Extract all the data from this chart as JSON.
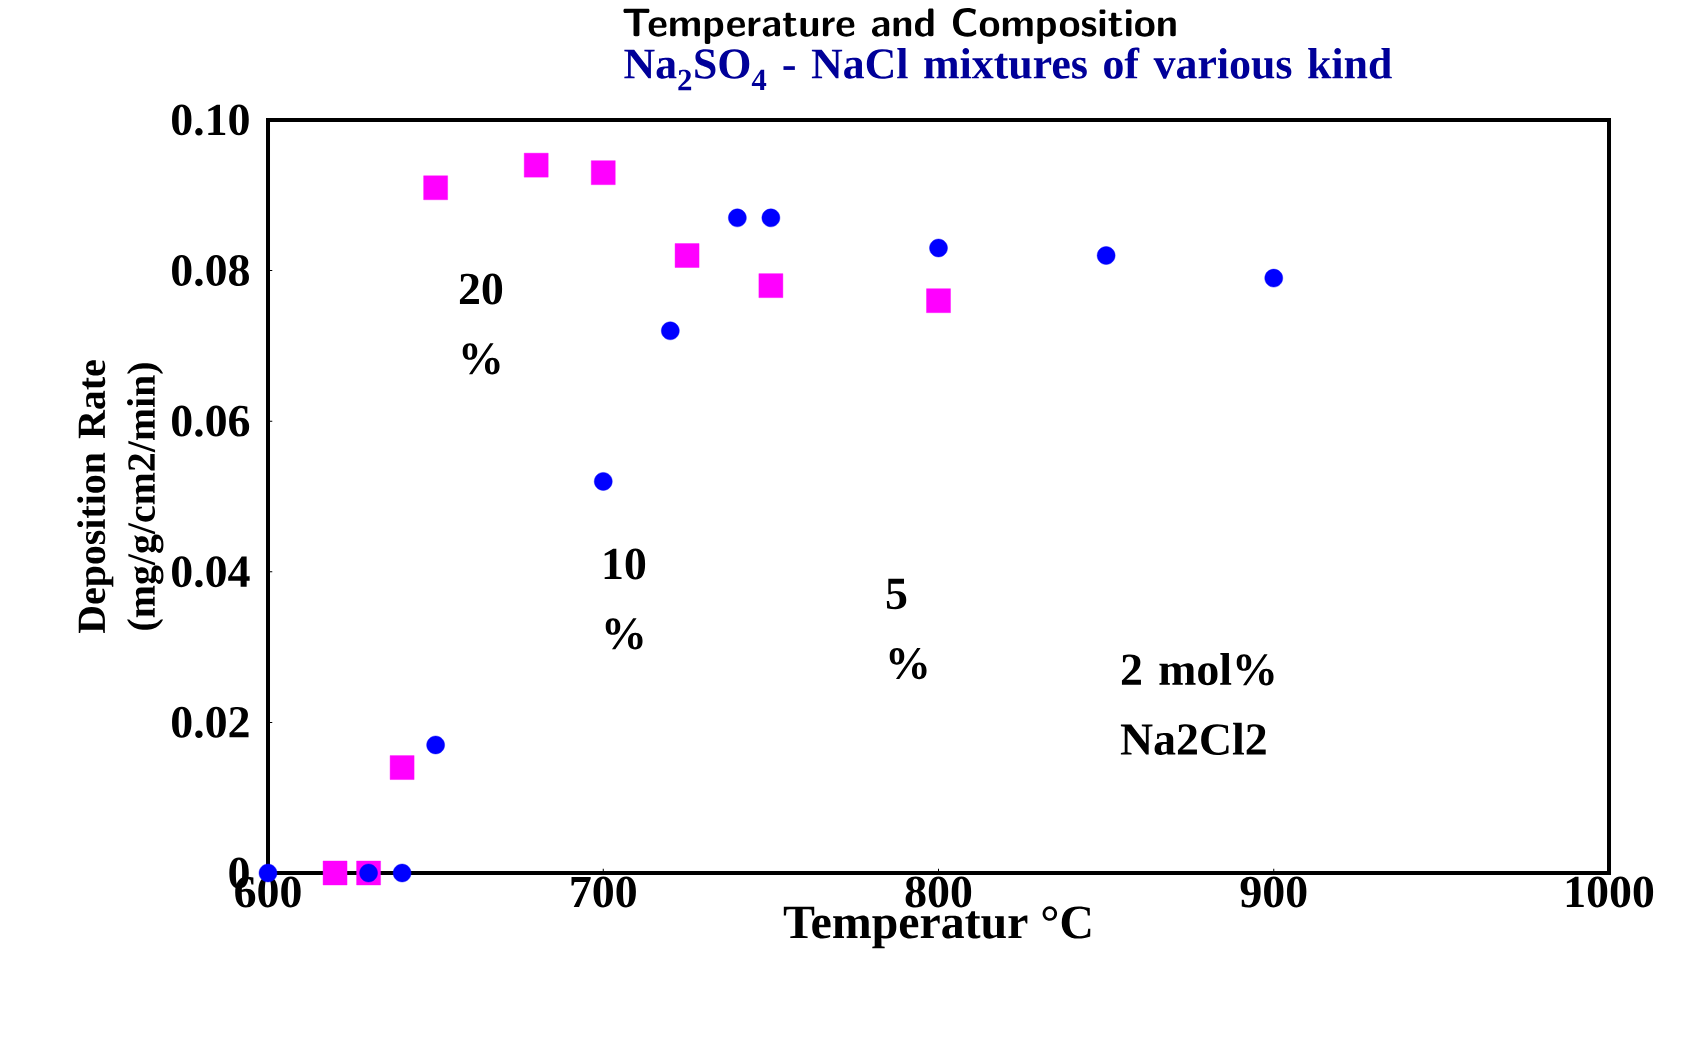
{
  "chart_data": {
    "type": "scatter",
    "title": "Temperature and Composition",
    "subtitle": "Na$_{2}$SO$_{4}$ - NaCl mixtures of various kind",
    "xlabel": "Temperatur °C",
    "ylabel": "Deposition Rate (mg/g/cm2/min)",
    "xlim": [
      600,
      1000
    ],
    "xticks": [
      600,
      700,
      800,
      900,
      1000
    ],
    "ylim": [
      0,
      0.1
    ],
    "yticks": [
      0,
      {
        "value": 0.02,
        "label": "0.02"
      },
      {
        "value": 0.04,
        "label": "0.04"
      },
      {
        "value": 0.06,
        "label": "0.06"
      },
      {
        "value": 0.08,
        "label": "0.08"
      },
      {
        "value": 0.1,
        "label": "0.10"
      }
    ],
    "series": [
      {
        "color": "#0000ff",
        "marker": "circle",
        "x": [
          600,
          630,
          640,
          650,
          700,
          720,
          740,
          750,
          800,
          850,
          900
        ],
        "values": [
          0,
          0,
          0,
          0.017,
          0.052,
          0.072,
          0.087,
          0.087,
          0.083,
          0.082,
          0.079
        ]
      },
      {
        "color": "#ff00ff",
        "marker": "square",
        "x": [
          620,
          630,
          640,
          650,
          680,
          700,
          725,
          750,
          800
        ],
        "values": [
          0,
          0,
          0.014,
          0.091,
          0.094,
          0.093,
          0.082,
          0.078,
          0.076
        ]
      }
    ],
    "annotations": [
      "20 %",
      "10 %",
      "5 %",
      "2 mol% Na2Cl2"
    ]
  }
}
